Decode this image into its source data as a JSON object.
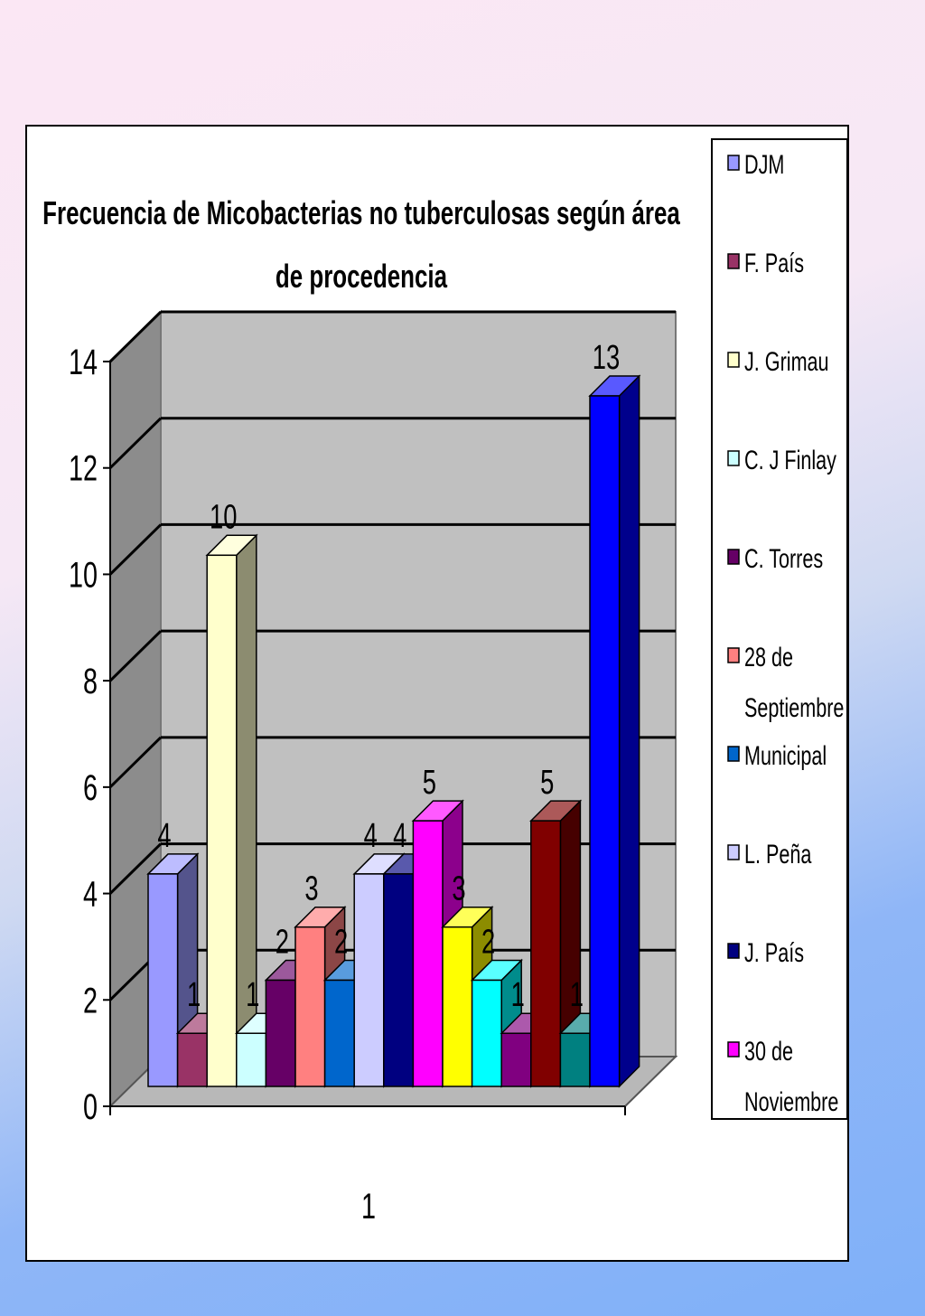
{
  "chart_data": {
    "type": "bar",
    "title_lines": [
      "Frecuencia de Micobacterias no tuberculosas según área",
      "de procedencia"
    ],
    "categories": [
      "1"
    ],
    "ylim": [
      0,
      14
    ],
    "yticks": [
      0,
      2,
      4,
      6,
      8,
      10,
      12,
      14
    ],
    "grid": true,
    "legend_position": "right",
    "series": [
      {
        "name": "DJM",
        "value": 4,
        "color": "#9999ff"
      },
      {
        "name": "F. País",
        "value": 1,
        "color": "#993366"
      },
      {
        "name": "J. Grimau",
        "value": 10,
        "color": "#ffffcc"
      },
      {
        "name": "C. J Finlay",
        "value": 1,
        "color": "#ccffff"
      },
      {
        "name": "C. Torres",
        "value": 2,
        "color": "#660066"
      },
      {
        "name": "28 de Septiembre",
        "value": 3,
        "color": "#ff8080"
      },
      {
        "name": "Municipal",
        "value": 2,
        "color": "#0066cc"
      },
      {
        "name": "L. Peña",
        "value": 4,
        "color": "#ccccff"
      },
      {
        "name": "J. País",
        "value": 4,
        "color": "#000080"
      },
      {
        "name": "30 de Noviembre",
        "value": 5,
        "color": "#ff00ff"
      },
      {
        "name": "",
        "value": 3,
        "color": "#ffff00"
      },
      {
        "name": "",
        "value": 2,
        "color": "#00ffff"
      },
      {
        "name": "",
        "value": 1,
        "color": "#800080"
      },
      {
        "name": "",
        "value": 5,
        "color": "#800000"
      },
      {
        "name": "",
        "value": 1,
        "color": "#008080"
      },
      {
        "name": "",
        "value": 13,
        "color": "#0000ff"
      }
    ]
  }
}
